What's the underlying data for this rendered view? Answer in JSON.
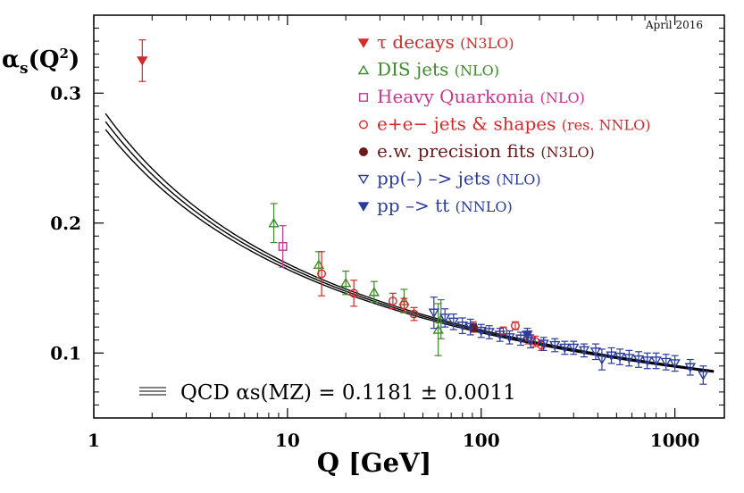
{
  "chart_data": {
    "type": "scatter",
    "title": "",
    "date_label": "April 2016",
    "xlabel": "Q [GeV]",
    "ylabel": "αs(Q²)",
    "x_scale": "log",
    "xlim": [
      1,
      1800
    ],
    "ylim": [
      0.05,
      0.36
    ],
    "x_ticks": [
      {
        "value": 1,
        "label": "1"
      },
      {
        "value": 10,
        "label": "10"
      },
      {
        "value": 100,
        "label": "100"
      },
      {
        "value": 1000,
        "label": "1000"
      }
    ],
    "y_ticks": [
      {
        "value": 0.1,
        "label": "0.1"
      },
      {
        "value": 0.2,
        "label": "0.2"
      },
      {
        "value": 0.3,
        "label": "0.3"
      }
    ],
    "legend": [
      {
        "name": "τ decays",
        "suffix": "(N3LO)",
        "color": "#d42a2a",
        "marker": "triangle-down-filled"
      },
      {
        "name": "DIS jets",
        "suffix": "(NLO)",
        "color": "#3f8a2c",
        "marker": "triangle-up-open"
      },
      {
        "name": "Heavy Quarkonia",
        "suffix": "(NLO)",
        "color": "#c8358f",
        "marker": "square-open"
      },
      {
        "name": "e+e− jets & shapes",
        "suffix": "(res. NNLO)",
        "color": "#d42a2a",
        "marker": "circle-open"
      },
      {
        "name": "e.w. precision fits",
        "suffix": "(N3LO)",
        "color": "#6b1a1a",
        "marker": "circle-filled"
      },
      {
        "name": "pp(–) –> jets",
        "suffix": "(NLO)",
        "color": "#2a3d9e",
        "marker": "triangle-down-open"
      },
      {
        "name": "pp –> tt",
        "suffix": "(NNLO)",
        "color": "#2a3d9e",
        "marker": "triangle-down-filled"
      }
    ],
    "band_label": "QCD αs(MZ) = 0.1181 ± 0.0011",
    "band": {
      "alpha_mz": 0.1181,
      "uncertainty": 0.0011,
      "mz": 91.19
    },
    "series": [
      {
        "name": "τ decays",
        "points": [
          {
            "x": 1.78,
            "y": 0.325,
            "err": 0.016
          }
        ]
      },
      {
        "name": "DIS jets",
        "points": [
          {
            "x": 8.5,
            "y": 0.2,
            "err": 0.015
          },
          {
            "x": 14.5,
            "y": 0.168,
            "err": 0.01
          },
          {
            "x": 20,
            "y": 0.154,
            "err": 0.009
          },
          {
            "x": 28,
            "y": 0.147,
            "err": 0.008
          },
          {
            "x": 40,
            "y": 0.14,
            "err": 0.009
          },
          {
            "x": 60,
            "y": 0.118,
            "err": 0.02
          },
          {
            "x": 62,
            "y": 0.126,
            "err": 0.015
          }
        ]
      },
      {
        "name": "Heavy Quarkonia",
        "points": [
          {
            "x": 9.46,
            "y": 0.182,
            "err": 0.016
          }
        ]
      },
      {
        "name": "e+e− jets & shapes",
        "points": [
          {
            "x": 15,
            "y": 0.161,
            "err": 0.017
          },
          {
            "x": 22,
            "y": 0.146,
            "err": 0.01
          },
          {
            "x": 35,
            "y": 0.14,
            "err": 0.006
          },
          {
            "x": 40,
            "y": 0.137,
            "err": 0.005
          },
          {
            "x": 45,
            "y": 0.13,
            "err": 0.005
          },
          {
            "x": 91,
            "y": 0.12,
            "err": 0.004
          },
          {
            "x": 130,
            "y": 0.117,
            "err": 0.003
          },
          {
            "x": 150,
            "y": 0.121,
            "err": 0.003
          },
          {
            "x": 175,
            "y": 0.112,
            "err": 0.005
          },
          {
            "x": 190,
            "y": 0.109,
            "err": 0.004
          },
          {
            "x": 205,
            "y": 0.106,
            "err": 0.004
          }
        ]
      },
      {
        "name": "e.w. precision fits",
        "points": [
          {
            "x": 91.19,
            "y": 0.1196,
            "err": 0.003
          }
        ]
      },
      {
        "name": "pp(–) –> jets",
        "points": [
          {
            "x": 57,
            "y": 0.131,
            "err": 0.012
          },
          {
            "x": 65,
            "y": 0.127,
            "err": 0.007
          },
          {
            "x": 72,
            "y": 0.124,
            "err": 0.006
          },
          {
            "x": 80,
            "y": 0.121,
            "err": 0.006
          },
          {
            "x": 88,
            "y": 0.12,
            "err": 0.006
          },
          {
            "x": 100,
            "y": 0.117,
            "err": 0.005
          },
          {
            "x": 110,
            "y": 0.116,
            "err": 0.005
          },
          {
            "x": 125,
            "y": 0.114,
            "err": 0.005
          },
          {
            "x": 140,
            "y": 0.112,
            "err": 0.005
          },
          {
            "x": 160,
            "y": 0.111,
            "err": 0.005
          },
          {
            "x": 180,
            "y": 0.109,
            "err": 0.005
          },
          {
            "x": 210,
            "y": 0.107,
            "err": 0.005
          },
          {
            "x": 240,
            "y": 0.106,
            "err": 0.005
          },
          {
            "x": 270,
            "y": 0.104,
            "err": 0.005
          },
          {
            "x": 300,
            "y": 0.104,
            "err": 0.005
          },
          {
            "x": 340,
            "y": 0.102,
            "err": 0.005
          },
          {
            "x": 390,
            "y": 0.101,
            "err": 0.006
          },
          {
            "x": 420,
            "y": 0.095,
            "err": 0.008
          },
          {
            "x": 470,
            "y": 0.098,
            "err": 0.006
          },
          {
            "x": 520,
            "y": 0.097,
            "err": 0.006
          },
          {
            "x": 580,
            "y": 0.096,
            "err": 0.006
          },
          {
            "x": 650,
            "y": 0.095,
            "err": 0.006
          },
          {
            "x": 720,
            "y": 0.094,
            "err": 0.006
          },
          {
            "x": 800,
            "y": 0.094,
            "err": 0.006
          },
          {
            "x": 900,
            "y": 0.093,
            "err": 0.006
          },
          {
            "x": 1000,
            "y": 0.092,
            "err": 0.006
          },
          {
            "x": 1200,
            "y": 0.089,
            "err": 0.006
          },
          {
            "x": 1400,
            "y": 0.083,
            "err": 0.007
          }
        ]
      },
      {
        "name": "pp –> tt",
        "points": [
          {
            "x": 173,
            "y": 0.114,
            "err": 0.005
          }
        ]
      }
    ]
  }
}
